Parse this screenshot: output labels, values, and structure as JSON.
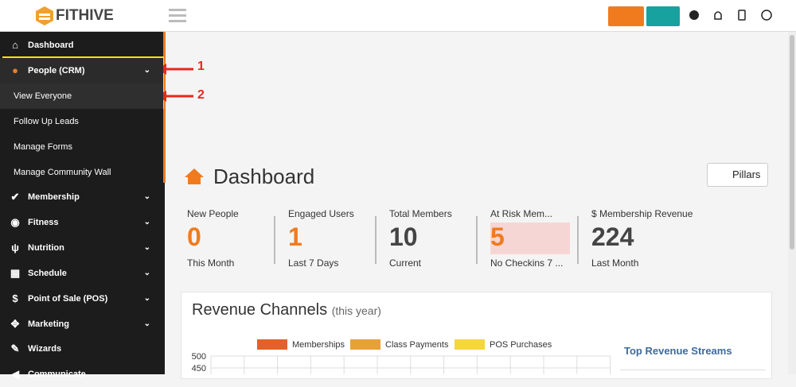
{
  "header": {
    "logo": "FITHIVE"
  },
  "sidebar": {
    "items": [
      "Dashboard",
      "People (CRM)",
      "View Everyone",
      "Follow Up Leads",
      "Manage Forms",
      "Manage Community Wall",
      "Membership",
      "Fitness",
      "Nutrition",
      "Schedule",
      "Point of Sale (POS)",
      "Marketing",
      "Wizards",
      "Communicate"
    ]
  },
  "annotations": [
    "1",
    "2"
  ],
  "main": {
    "title": "Dashboard",
    "pillars_button": "Pillars",
    "stats": [
      {
        "label": "New People",
        "value": "0",
        "sub": "This Month"
      },
      {
        "label": "Engaged Users",
        "value": "1",
        "sub": "Last 7 Days"
      },
      {
        "label": "Total Members",
        "value": "10",
        "sub": "Current"
      },
      {
        "label": "At Risk Mem...",
        "value": "5",
        "sub": "No Checkins 7 ..."
      },
      {
        "label": "$ Membership Revenue",
        "value": "224",
        "sub": "Last Month"
      }
    ],
    "revenue": {
      "title": "Revenue Channels",
      "subtitle": "(this year)",
      "legend": [
        {
          "name": "Memberships",
          "color": "#e0622a"
        },
        {
          "name": "Class Payments",
          "color": "#e8a03a"
        },
        {
          "name": "POS Purchases",
          "color": "#f5d63d"
        }
      ],
      "yticks": [
        500,
        450
      ],
      "side_title": "Top Revenue Streams"
    }
  }
}
